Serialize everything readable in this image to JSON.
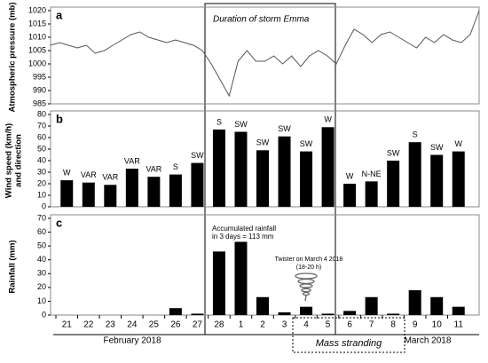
{
  "x_axis": {
    "categories": [
      "21",
      "22",
      "23",
      "24",
      "25",
      "26",
      "27",
      "28",
      "1",
      "2",
      "3",
      "4",
      "5",
      "6",
      "7",
      "8",
      "9",
      "10",
      "11"
    ],
    "groups": [
      "February 2018",
      "March 2018"
    ],
    "highlight": "Mass stranding"
  },
  "chart_data": [
    {
      "type": "line",
      "panel": "a",
      "ylabel": "Atmospheric pressure (mb)",
      "annotation": "Duration of storm Emma",
      "color": "#555555",
      "values": [
        1007,
        1008,
        1007,
        1006,
        1007,
        1004,
        1005,
        1007,
        1009,
        1011,
        1012,
        1010,
        1009,
        1008,
        1009,
        1008,
        1007,
        1005,
        1000,
        994,
        988,
        1001,
        1005,
        1001,
        1001,
        1003,
        1000,
        1003,
        999,
        1003,
        1005,
        1003,
        1000,
        1007,
        1013,
        1011,
        1008,
        1011,
        1012,
        1010,
        1008,
        1006,
        1010,
        1008,
        1011,
        1009,
        1008,
        1011,
        1020
      ],
      "ylim": [
        985,
        1020
      ],
      "yticks": [
        985,
        990,
        995,
        1000,
        1005,
        1010,
        1015,
        1020
      ]
    },
    {
      "type": "bar",
      "panel": "b",
      "ylabel": [
        "Wind speed (km/h)",
        "and direction"
      ],
      "color": "#000000",
      "values": [
        23,
        21,
        19,
        33,
        26,
        28,
        38,
        67,
        65,
        49,
        61,
        48,
        69,
        20,
        22,
        40,
        56,
        45,
        48
      ],
      "directions": [
        "W",
        "VAR",
        "VAR",
        "VAR",
        "VAR",
        "S",
        "SW",
        "S",
        "SW",
        "SW",
        "SW",
        "SW",
        "W",
        "W",
        "N-NE",
        "SW",
        "S",
        "SW",
        "W"
      ],
      "ylim": [
        0,
        80
      ],
      "yticks": [
        0,
        10,
        20,
        30,
        40,
        50,
        60,
        70,
        80
      ]
    },
    {
      "type": "bar",
      "panel": "c",
      "ylabel": "Rainfall (mm)",
      "color": "#000000",
      "values": [
        0,
        0,
        0,
        0,
        0,
        5,
        1,
        46,
        53,
        13,
        2,
        6,
        1,
        3,
        13,
        1,
        18,
        13,
        6
      ],
      "annotations": [
        "Accumulated rainfall",
        "in 3 days = 113 mm",
        "Twister on March 4 2018",
        "(18-20 h)"
      ],
      "ylim": [
        0,
        70
      ],
      "yticks": [
        0,
        10,
        20,
        30,
        40,
        50,
        60,
        70
      ]
    }
  ]
}
